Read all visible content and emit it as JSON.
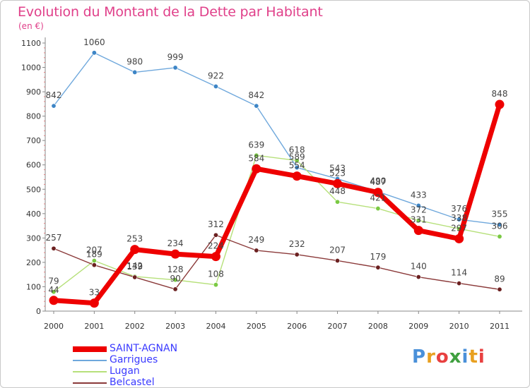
{
  "header": {
    "title": "Evolution du Montant de la Dette par Habitant",
    "unit": "(en €)"
  },
  "logo": {
    "text": "Proxiti",
    "letters": [
      "P",
      "r",
      "o",
      "x",
      "i",
      "t",
      "i"
    ],
    "colors": [
      "#4a90d9",
      "#e8a020",
      "#e84040",
      "#40a040",
      "#4a90d9",
      "#e8a020",
      "#e84040"
    ]
  },
  "chart_data": {
    "type": "line",
    "title": "Evolution du Montant de la Dette par Habitant",
    "ylabel": "(en €)",
    "xlabel": "",
    "ylim": [
      0,
      1100
    ],
    "yticks": [
      0,
      100,
      200,
      300,
      400,
      500,
      600,
      700,
      800,
      900,
      1000,
      1100
    ],
    "x": [
      "2000",
      "2001",
      "2002",
      "2003",
      "2004",
      "2005",
      "2006",
      "2007",
      "2008",
      "2009",
      "2010",
      "2011"
    ],
    "grid": false,
    "legend_position": "bottom-left",
    "series": [
      {
        "name": "Garrigues",
        "color": "#6fa8dc",
        "point_color": "#3d85c6",
        "values": [
          842,
          1060,
          980,
          999,
          922,
          842,
          589,
          543,
          490,
          433,
          376,
          355
        ]
      },
      {
        "name": "Lugan",
        "color": "#b6e07a",
        "point_color": "#7ac943",
        "values": [
          79,
          207,
          142,
          128,
          108,
          639,
          618,
          448,
          421,
          372,
          338,
          306
        ]
      },
      {
        "name": "Belcastel",
        "color": "#8b3a3a",
        "point_color": "#6b2020",
        "values": [
          257,
          189,
          139,
          90,
          312,
          249,
          232,
          207,
          179,
          140,
          114,
          89
        ]
      },
      {
        "name": "SAINT-AGNAN",
        "color": "#ee0000",
        "point_color": "#ee0000",
        "highlight": true,
        "values": [
          44,
          33,
          253,
          234,
          224,
          584,
          554,
          523,
          487,
          331,
          297,
          848
        ]
      }
    ],
    "legend_order": [
      "SAINT-AGNAN",
      "Garrigues",
      "Lugan",
      "Belcastel"
    ]
  }
}
